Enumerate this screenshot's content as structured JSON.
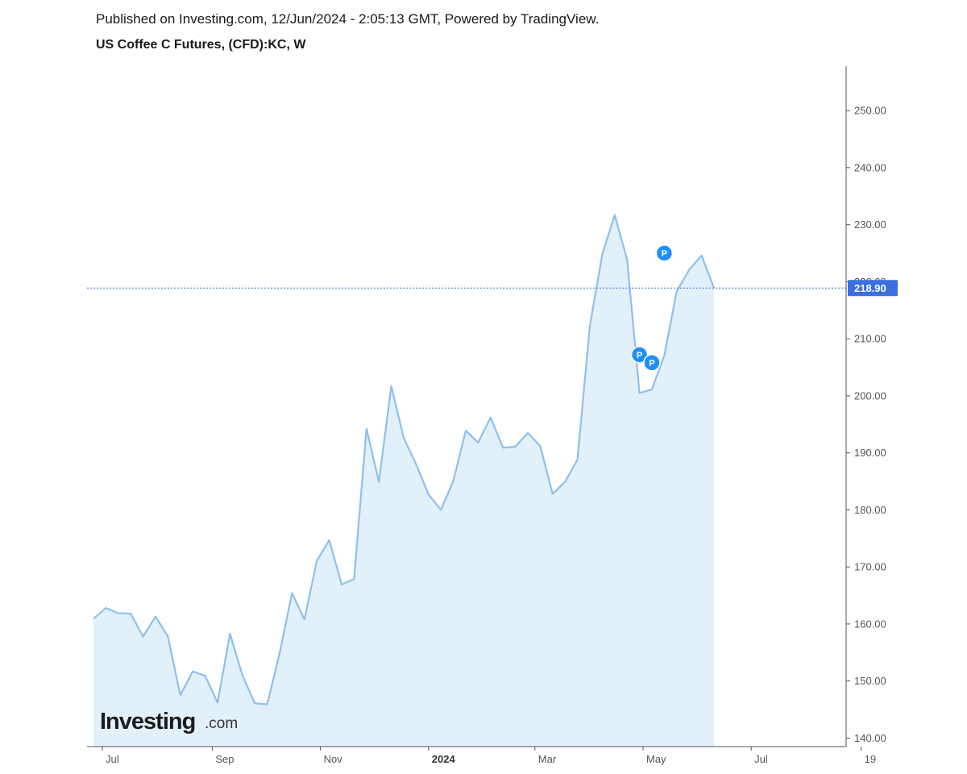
{
  "header": {
    "published": "Published on Investing.com, 12/Jun/2024 - 2:05:13 GMT, Powered by TradingView.",
    "title": "US Coffee C Futures, (CFD):KC, W"
  },
  "logo": {
    "main": "Investing",
    "suffix": ".com"
  },
  "colors": {
    "line": "#8ec0ec",
    "area": "#e2f0fa",
    "price_line": "#3a6ee0",
    "price_badge": "#3b6fe0",
    "marker": "#1f8fff",
    "axis": "#555555"
  },
  "chart_data": {
    "type": "area",
    "title": "US Coffee C Futures, (CFD):KC, W",
    "xlabel": "",
    "ylabel": "",
    "ylim": [
      138.5,
      257.8
    ],
    "grid": false,
    "x": [
      "2023-06-26",
      "2023-07-03",
      "2023-07-10",
      "2023-07-17",
      "2023-07-24",
      "2023-07-31",
      "2023-08-07",
      "2023-08-14",
      "2023-08-21",
      "2023-08-28",
      "2023-09-04",
      "2023-09-11",
      "2023-09-18",
      "2023-09-25",
      "2023-10-02",
      "2023-10-09",
      "2023-10-16",
      "2023-10-23",
      "2023-10-30",
      "2023-11-06",
      "2023-11-13",
      "2023-11-20",
      "2023-11-27",
      "2023-12-04",
      "2023-12-11",
      "2023-12-18",
      "2023-12-25",
      "2024-01-01",
      "2024-01-08",
      "2024-01-15",
      "2024-01-22",
      "2024-01-29",
      "2024-02-05",
      "2024-02-12",
      "2024-02-19",
      "2024-02-26",
      "2024-03-04",
      "2024-03-11",
      "2024-03-18",
      "2024-03-25",
      "2024-04-01",
      "2024-04-08",
      "2024-04-15",
      "2024-04-22",
      "2024-04-29",
      "2024-05-06",
      "2024-05-13",
      "2024-05-20",
      "2024-05-27",
      "2024-06-03",
      "2024-06-10"
    ],
    "values": [
      160.9,
      162.8,
      161.9,
      161.8,
      157.8,
      161.3,
      157.8,
      147.5,
      151.7,
      150.9,
      146.2,
      158.3,
      151.0,
      146.1,
      145.9,
      154.9,
      165.4,
      160.8,
      171.1,
      174.7,
      166.9,
      167.9,
      194.2,
      184.9,
      201.7,
      192.6,
      188.0,
      182.7,
      180.0,
      185.1,
      193.9,
      191.8,
      196.2,
      190.9,
      191.1,
      193.5,
      191.2,
      182.8,
      184.9,
      188.8,
      212.3,
      224.8,
      231.7,
      223.9,
      200.5,
      201.1,
      207.1,
      218.3,
      222.1,
      224.6,
      218.9
    ],
    "y_ticks": [
      140,
      150,
      160,
      170,
      180,
      190,
      200,
      210,
      220,
      230,
      240,
      250
    ],
    "y_tick_labels": [
      "140.00",
      "150.00",
      "160.00",
      "170.00",
      "180.00",
      "190.00",
      "200.00",
      "210.00",
      "220.00",
      "230.00",
      "240.00",
      "250.00"
    ],
    "x_ticks": [
      {
        "x": "2023-07-01",
        "label": "Jul",
        "bold": false
      },
      {
        "x": "2023-09-01",
        "label": "Sep",
        "bold": false
      },
      {
        "x": "2023-11-01",
        "label": "Nov",
        "bold": false
      },
      {
        "x": "2024-01-01",
        "label": "2024",
        "bold": true
      },
      {
        "x": "2024-03-01",
        "label": "Mar",
        "bold": false
      },
      {
        "x": "2024-05-01",
        "label": "May",
        "bold": false
      },
      {
        "x": "2024-07-01",
        "label": "Jul",
        "bold": false
      },
      {
        "x": "2024-09-01",
        "label": "19",
        "bold": false
      }
    ],
    "last_price": 218.9,
    "last_price_label": "218.90",
    "markers": [
      {
        "x": "2024-04-29",
        "y": 207.2,
        "label": "P"
      },
      {
        "x": "2024-05-06",
        "y": 205.8,
        "label": "P"
      },
      {
        "x": "2024-05-13",
        "y": 225.0,
        "label": "P"
      }
    ]
  }
}
